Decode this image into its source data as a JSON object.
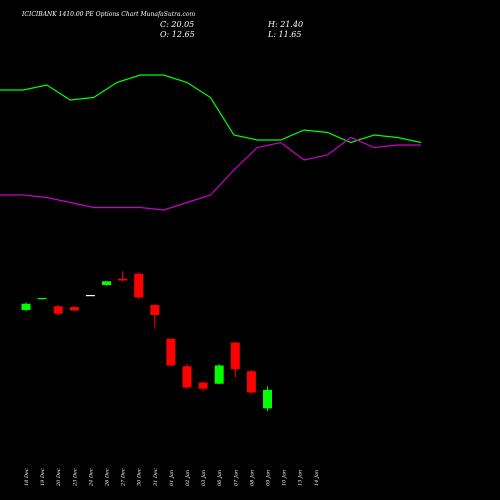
{
  "header": {
    "title": "ICICIBANK 1410.00 PE Options Chart MunafaSutra.com",
    "close_text": "C: 20.05",
    "high_text": "H: 21.40",
    "open_text": "O: 12.65",
    "low_text": "L: 11.65"
  },
  "colors": {
    "background": "#000000",
    "up": "#00ff00",
    "down": "#ff0000",
    "neutral": "#ffffff",
    "line_green": "#00ff00",
    "line_magenta": "#cc00cc"
  },
  "chart_data": {
    "type": "candlestick",
    "title": "ICICIBANK 1410.00 PE Options Chart MunafaSutra.com",
    "x": [
      "18 Dec",
      "19 Dec",
      "20 Dec",
      "23 Dec",
      "24 Dec",
      "26 Dec",
      "27 Dec",
      "30 Dec",
      "31 Dec",
      "01 Jan",
      "02 Jan",
      "03 Jan",
      "06 Jan",
      "07 Jan",
      "08 Jan",
      "09 Jan",
      "10 Jan",
      "13 Jan",
      "14 Jan"
    ],
    "candles": [
      {
        "date": "18 Dec",
        "open": 52.0,
        "high": 55.0,
        "low": 51.5,
        "close": 54.5
      },
      {
        "date": "19 Dec",
        "open": 56.5,
        "high": 56.8,
        "low": 56.2,
        "close": 56.8
      },
      {
        "date": "20 Dec",
        "open": 53.5,
        "high": 54.0,
        "low": 50.0,
        "close": 50.5
      },
      {
        "date": "23 Dec",
        "open": 53.2,
        "high": 53.5,
        "low": 51.5,
        "close": 51.8
      },
      {
        "date": "24 Dec",
        "open": 58.0,
        "high": 58.0,
        "low": 58.0,
        "close": 58.0
      },
      {
        "date": "26 Dec",
        "open": 62.0,
        "high": 63.5,
        "low": 61.8,
        "close": 63.5
      },
      {
        "date": "27 Dec",
        "open": 64.5,
        "high": 67.5,
        "low": 63.5,
        "close": 63.8
      },
      {
        "date": "30 Dec",
        "open": 66.5,
        "high": 67.0,
        "low": 56.5,
        "close": 57.0
      },
      {
        "date": "31 Dec",
        "open": 54.0,
        "high": 54.2,
        "low": 44.5,
        "close": 50.0
      },
      {
        "date": "01 Jan",
        "open": 40.5,
        "high": 40.7,
        "low": 29.5,
        "close": 29.8
      },
      {
        "date": "02 Jan",
        "open": 29.5,
        "high": 30.5,
        "low": 20.5,
        "close": 21.0
      },
      {
        "date": "03 Jan",
        "open": 23.0,
        "high": 23.2,
        "low": 19.5,
        "close": 20.5
      },
      {
        "date": "06 Jan",
        "open": 22.5,
        "high": 30.3,
        "low": 22.4,
        "close": 29.8
      },
      {
        "date": "07 Jan",
        "open": 39.0,
        "high": 39.2,
        "low": 25.0,
        "close": 28.3
      },
      {
        "date": "08 Jan",
        "open": 27.5,
        "high": 28.0,
        "low": 18.5,
        "close": 19.0
      },
      {
        "date": "09 Jan",
        "open": 12.65,
        "high": 21.4,
        "low": 11.65,
        "close": 20.05
      }
    ],
    "lines": [
      {
        "color": "green",
        "values": [
          220,
          220,
          222,
          216,
          217,
          223,
          226,
          226,
          223,
          217,
          202,
          200,
          200,
          204,
          203,
          199,
          202,
          201,
          199
        ]
      },
      {
        "color": "magenta",
        "values": [
          178,
          178,
          177,
          175,
          173,
          173,
          173,
          172,
          175,
          178,
          188,
          197,
          199,
          192,
          194,
          201,
          197,
          198,
          198
        ]
      }
    ],
    "ylim_candles": [
      0,
      80
    ],
    "ylim_lines": [
      160,
      240
    ]
  }
}
